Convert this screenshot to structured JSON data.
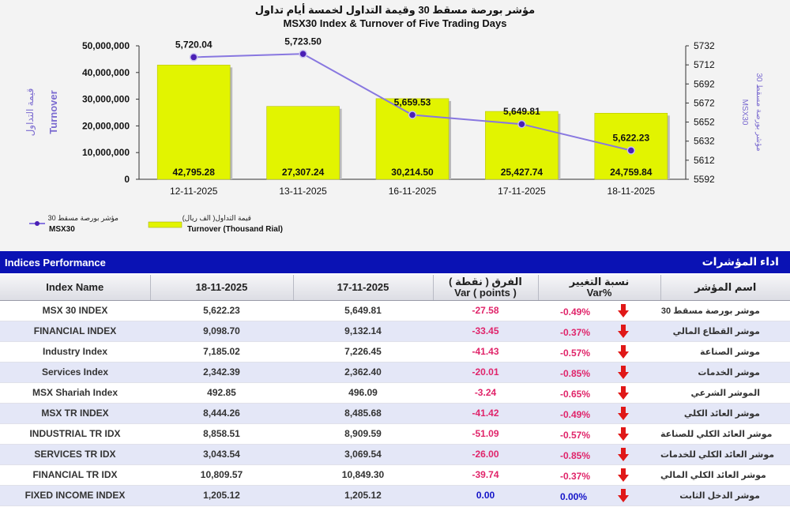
{
  "chart_data": {
    "type": "bar+line",
    "title_ar": "مؤشر بورصة مسقط 30 وقيمة التداول لخمسة أيام تداول",
    "title_en": "MSX30 Index & Turnover of Five Trading Days",
    "categories": [
      "12-11-2025",
      "13-11-2025",
      "16-11-2025",
      "17-11-2025",
      "18-11-2025"
    ],
    "turnover": [
      42795.28,
      27307.24,
      30214.5,
      25427.74,
      24759.84
    ],
    "turnover_labels": [
      "42,795.28",
      "27,307.24",
      "30,214.50",
      "25,427.74",
      "24,759.84"
    ],
    "index_values": [
      5720.04,
      5723.5,
      5659.53,
      5649.81,
      5622.23
    ],
    "index_labels": [
      "5,720.04",
      "5,723.50",
      "5,659.53",
      "5,649.81",
      "5,622.23"
    ],
    "left_axis": {
      "label_ar": "قيمة التداول",
      "label_en": "Turnover",
      "range": [
        0,
        50000000
      ],
      "step": 10000000,
      "ticks": [
        "0",
        "10,000,000",
        "20,000,000",
        "30,000,000",
        "40,000,000",
        "50,000,000"
      ]
    },
    "right_axis": {
      "label_ar": "مؤشر بورصة مسقط 30",
      "label_en": "MSX30",
      "range": [
        5592,
        5732
      ],
      "step": 20,
      "ticks": [
        "5592",
        "5612",
        "5632",
        "5652",
        "5672",
        "5692",
        "5712",
        "5732"
      ]
    },
    "legend": [
      {
        "ar": "مؤشر بورصة مسقط 30",
        "en": "MSX30",
        "kind": "line"
      },
      {
        "ar": "قيمة التداول( الف ريال)",
        "en": "Turnover (Thousand Rial)",
        "kind": "bar"
      }
    ],
    "colors": {
      "bar": "#e2f400",
      "line": "#8877e0",
      "marker": "#4a1fb5"
    }
  },
  "performance": {
    "header_en": "Indices Performance",
    "header_ar": "اداء المؤشرات",
    "columns": {
      "name": "Index Name",
      "date1": "18-11-2025",
      "date2": "17-11-2025",
      "var_ar": "الفرق ( نقطة )",
      "var_en": "Var ( points )",
      "pct_ar": "نسبة التغيير",
      "pct_en": "Var%",
      "name_ar": "اسم المؤشر"
    },
    "rows": [
      {
        "name": "MSX 30 INDEX",
        "v1": "5,622.23",
        "v2": "5,649.81",
        "var": "-27.58",
        "pct": "-0.49%",
        "name_ar": "موشر بورصة مسقط 30",
        "trend": "down"
      },
      {
        "name": "FINANCIAL INDEX",
        "v1": "9,098.70",
        "v2": "9,132.14",
        "var": "-33.45",
        "pct": "-0.37%",
        "name_ar": "موشر القطاع المالي",
        "trend": "down"
      },
      {
        "name": "Industry Index",
        "v1": "7,185.02",
        "v2": "7,226.45",
        "var": "-41.43",
        "pct": "-0.57%",
        "name_ar": "موشر الصناعة",
        "trend": "down"
      },
      {
        "name": "Services Index",
        "v1": "2,342.39",
        "v2": "2,362.40",
        "var": "-20.01",
        "pct": "-0.85%",
        "name_ar": "موشر الخدمات",
        "trend": "down"
      },
      {
        "name": "MSX Shariah Index",
        "v1": "492.85",
        "v2": "496.09",
        "var": "-3.24",
        "pct": "-0.65%",
        "name_ar": "الموشر الشرعي",
        "trend": "down"
      },
      {
        "name": "MSX TR INDEX",
        "v1": "8,444.26",
        "v2": "8,485.68",
        "var": "-41.42",
        "pct": "-0.49%",
        "name_ar": "موشر العائد الكلي",
        "trend": "down"
      },
      {
        "name": "INDUSTRIAL TR IDX",
        "v1": "8,858.51",
        "v2": "8,909.59",
        "var": "-51.09",
        "pct": "-0.57%",
        "name_ar": "موشر العائد الكلي للصناعة",
        "trend": "down"
      },
      {
        "name": "SERVICES TR IDX",
        "v1": "3,043.54",
        "v2": "3,069.54",
        "var": "-26.00",
        "pct": "-0.85%",
        "name_ar": "موشر العائد الكلي للخدمات",
        "trend": "down"
      },
      {
        "name": "FINANCIAL TR IDX",
        "v1": "10,809.57",
        "v2": "10,849.30",
        "var": "-39.74",
        "pct": "-0.37%",
        "name_ar": "موشر العائد الكلي المالي",
        "trend": "down"
      },
      {
        "name": "FIXED INCOME INDEX",
        "v1": "1,205.12",
        "v2": "1,205.12",
        "var": "0.00",
        "pct": "0.00%",
        "name_ar": "موشر الدخل الثابت",
        "trend": "down"
      }
    ],
    "colors": {
      "header_bg": "#0a12b4",
      "negative": "#e0246a",
      "zero": "#1414c8",
      "arrow": "#e01818"
    }
  }
}
